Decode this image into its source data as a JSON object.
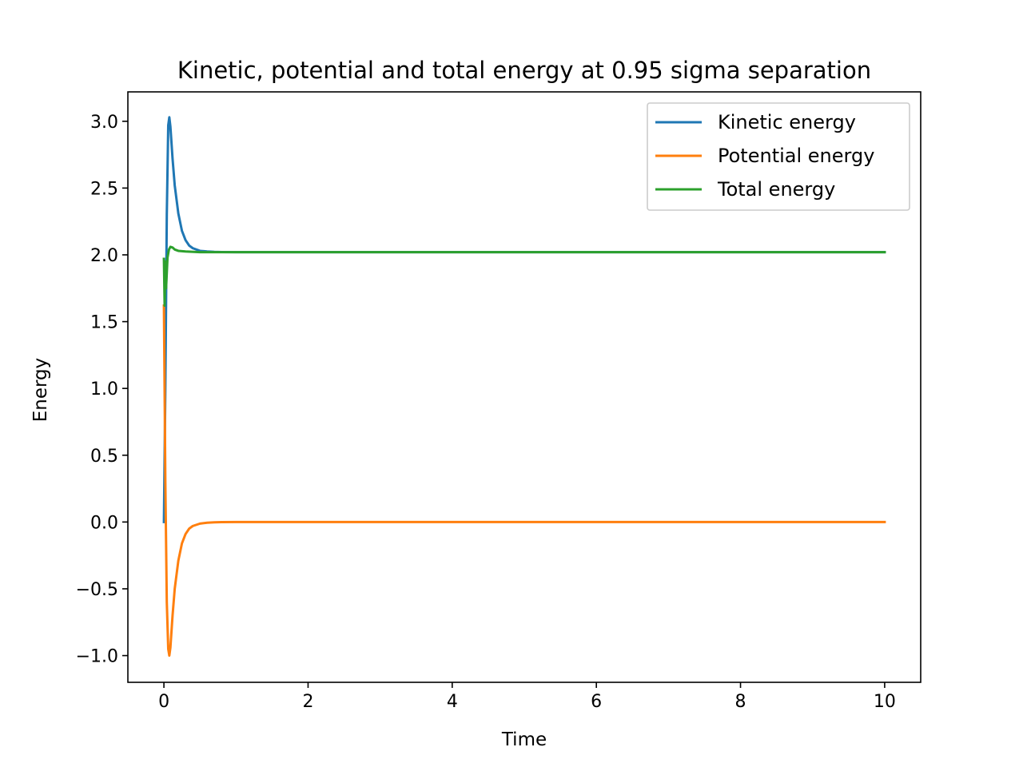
{
  "chart_data": {
    "type": "line",
    "title": "Kinetic, potential and total energy at 0.95 sigma separation",
    "xlabel": "Time",
    "ylabel": "Energy",
    "xlim": [
      -0.5,
      10.5
    ],
    "ylim": [
      -1.2,
      3.22
    ],
    "xticks": [
      0,
      2,
      4,
      6,
      8,
      10
    ],
    "xtick_labels": [
      "0",
      "2",
      "4",
      "6",
      "8",
      "10"
    ],
    "yticks": [
      -1.0,
      -0.5,
      0.0,
      0.5,
      1.0,
      1.5,
      2.0,
      2.5,
      3.0
    ],
    "ytick_labels": [
      "−1.0",
      "−0.5",
      "0.0",
      "0.5",
      "1.0",
      "1.5",
      "2.0",
      "2.5",
      "3.0"
    ],
    "grid": false,
    "legend_position": "top-right",
    "series": [
      {
        "name": "Kinetic energy",
        "color": "#1f77b4",
        "x": [
          0,
          0.02,
          0.04,
          0.06,
          0.075,
          0.09,
          0.12,
          0.15,
          0.2,
          0.25,
          0.3,
          0.35,
          0.4,
          0.5,
          0.6,
          0.7,
          0.8,
          1.0,
          1.5,
          3,
          5,
          7,
          10
        ],
        "y": [
          0.0,
          1.0,
          2.3,
          2.97,
          3.03,
          2.96,
          2.72,
          2.52,
          2.31,
          2.18,
          2.11,
          2.07,
          2.05,
          2.03,
          2.025,
          2.022,
          2.021,
          2.02,
          2.02,
          2.02,
          2.02,
          2.02,
          2.02
        ]
      },
      {
        "name": "Potential energy",
        "color": "#ff7f0e",
        "x": [
          0,
          0.02,
          0.04,
          0.06,
          0.075,
          0.09,
          0.12,
          0.15,
          0.2,
          0.25,
          0.3,
          0.35,
          0.4,
          0.5,
          0.6,
          0.7,
          0.8,
          1.0,
          1.5,
          3,
          5,
          7,
          10
        ],
        "y": [
          1.62,
          0.3,
          -0.6,
          -0.95,
          -1.0,
          -0.94,
          -0.7,
          -0.5,
          -0.29,
          -0.16,
          -0.09,
          -0.05,
          -0.03,
          -0.012,
          -0.005,
          -0.002,
          -0.001,
          0.0,
          0.0,
          0.0,
          0.0,
          0.0,
          0.0
        ]
      },
      {
        "name": "Total energy",
        "color": "#2ca02c",
        "x": [
          0,
          0.01,
          0.02,
          0.03,
          0.05,
          0.07,
          0.09,
          0.12,
          0.15,
          0.2,
          0.3,
          0.5,
          1.0,
          2,
          4,
          6,
          8,
          10
        ],
        "y": [
          1.97,
          1.62,
          1.95,
          1.75,
          1.98,
          2.04,
          2.06,
          2.055,
          2.04,
          2.03,
          2.025,
          2.02,
          2.02,
          2.02,
          2.02,
          2.02,
          2.02,
          2.02
        ]
      }
    ]
  }
}
